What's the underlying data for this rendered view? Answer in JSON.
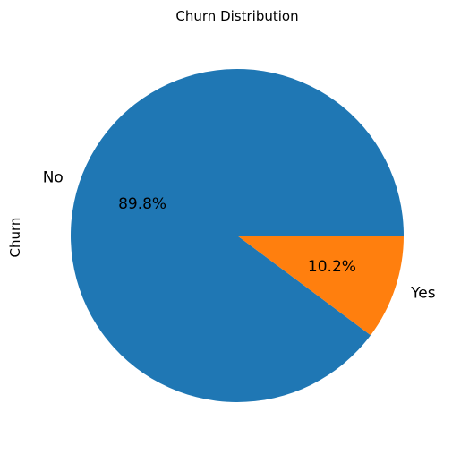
{
  "chart_data": {
    "type": "pie",
    "title": "Churn Distribution",
    "ylabel": "Churn",
    "categories": [
      "No",
      "Yes"
    ],
    "values": [
      89.8,
      10.2
    ],
    "percent_labels": [
      "89.8%",
      "10.2%"
    ],
    "colors": [
      "#1f77b4",
      "#ff7f0e"
    ]
  }
}
